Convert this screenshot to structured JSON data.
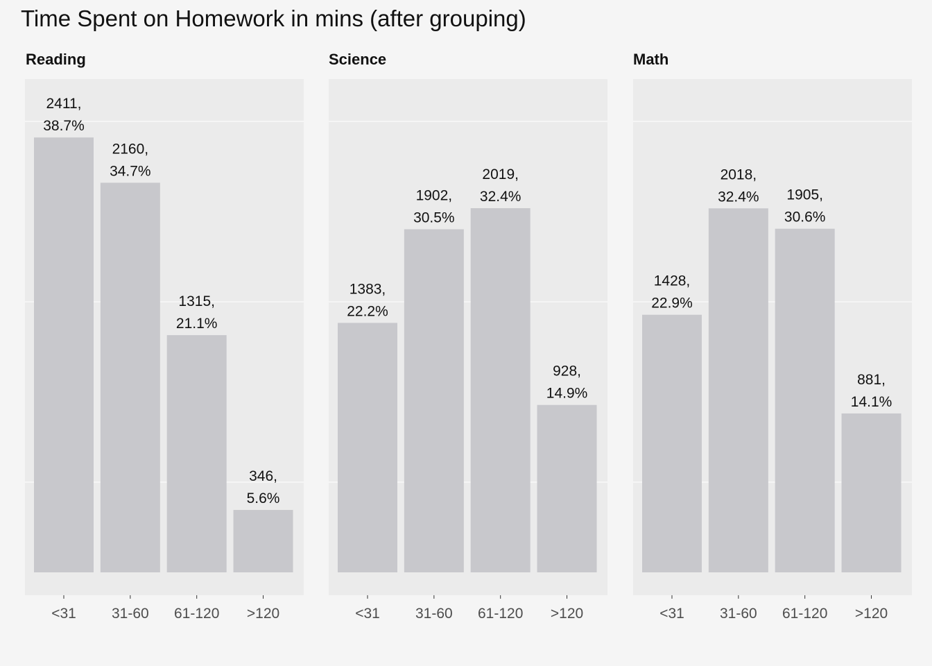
{
  "title": "Time Spent on Homework in mins (after grouping)",
  "colors": {
    "background": "#f5f5f5",
    "panel": "#ebebeb",
    "bar": "#c8c8cc",
    "grid": "#ffffff"
  },
  "chart_data": {
    "type": "bar",
    "title": "Time Spent on Homework in mins (after grouping)",
    "categories": [
      "<31",
      "31-60",
      "61-120",
      ">120"
    ],
    "ylim": [
      0,
      2600
    ],
    "grid": true,
    "panels": [
      {
        "name": "Reading",
        "values": [
          2411,
          2160,
          1315,
          346
        ],
        "labels": [
          [
            "2411,",
            "38.7%"
          ],
          [
            "2160,",
            "34.7%"
          ],
          [
            "1315,",
            "21.1%"
          ],
          [
            "346,",
            "5.6%"
          ]
        ]
      },
      {
        "name": "Science",
        "values": [
          1383,
          1902,
          2019,
          928
        ],
        "labels": [
          [
            "1383,",
            "22.2%"
          ],
          [
            "1902,",
            "30.5%"
          ],
          [
            "2019,",
            "32.4%"
          ],
          [
            "928,",
            "14.9%"
          ]
        ]
      },
      {
        "name": "Math",
        "values": [
          1428,
          2018,
          1905,
          881
        ],
        "labels": [
          [
            "1428,",
            "22.9%"
          ],
          [
            "2018,",
            "32.4%"
          ],
          [
            "1905,",
            "30.6%"
          ],
          [
            "881,",
            "14.1%"
          ]
        ]
      }
    ]
  }
}
